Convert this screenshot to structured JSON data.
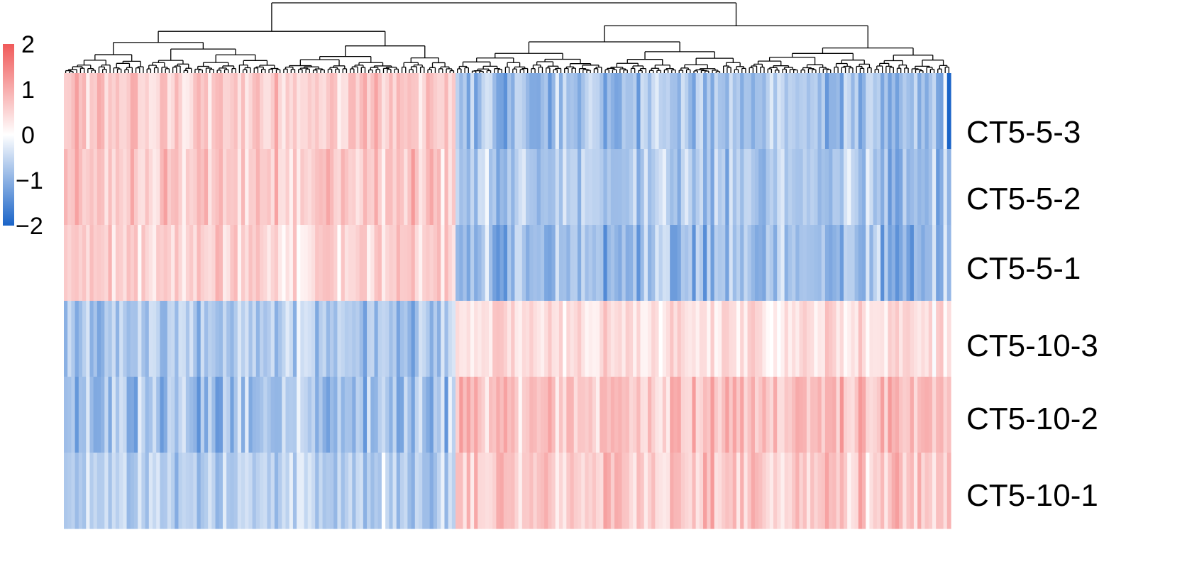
{
  "chart_data": {
    "type": "heatmap",
    "title": "",
    "rows": [
      "CT5-5-3",
      "CT5-5-2",
      "CT5-5-1",
      "CT5-10-3",
      "CT5-10-2",
      "CT5-10-1"
    ],
    "column_count": 240,
    "row_dendrogram": false,
    "column_dendrogram": true,
    "column_cluster_split": 106,
    "color_scale": {
      "min": -2,
      "max": 2,
      "low_color": "#1a64c8",
      "mid_color": "#ffffff",
      "high_color": "#f05a5a",
      "ticks": [
        "2",
        "1",
        "0",
        "−1",
        "−2"
      ]
    },
    "block_means": [
      {
        "row": "CT5-5-3",
        "left_cluster": 0.7,
        "right_cluster": -0.9
      },
      {
        "row": "CT5-5-2",
        "left_cluster": 0.75,
        "right_cluster": -0.85
      },
      {
        "row": "CT5-5-1",
        "left_cluster": 0.65,
        "right_cluster": -1.0
      },
      {
        "row": "CT5-10-3",
        "left_cluster": -0.8,
        "right_cluster": 0.45
      },
      {
        "row": "CT5-10-2",
        "left_cluster": -0.9,
        "right_cluster": 0.85
      },
      {
        "row": "CT5-10-1",
        "left_cluster": -0.7,
        "right_cluster": 0.75
      }
    ],
    "legend_position": "top-left",
    "grid": false
  }
}
